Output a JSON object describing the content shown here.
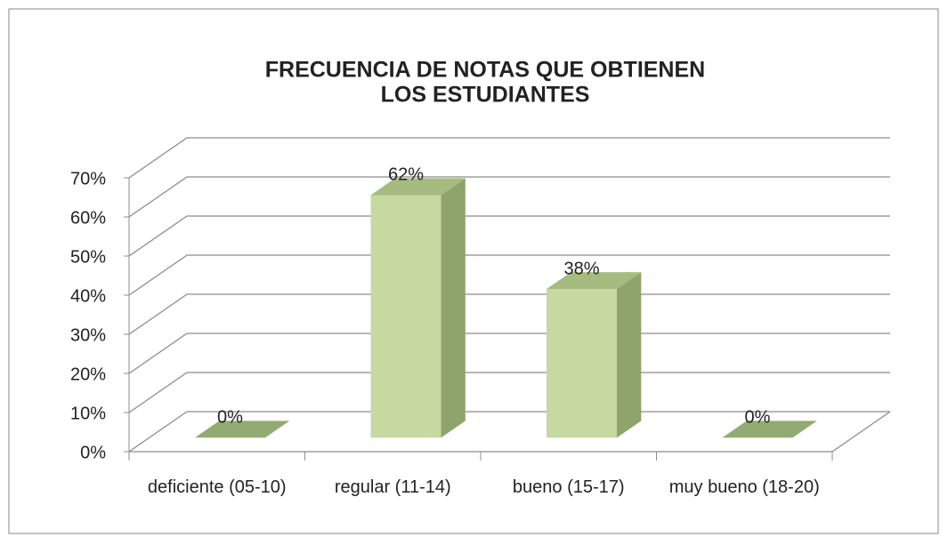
{
  "chart_data": {
    "type": "bar3d",
    "title": [
      "FRECUENCIA DE NOTAS QUE OBTIENEN",
      "LOS ESTUDIANTES"
    ],
    "categories": [
      "deficiente (05-10)",
      "regular (11-14)",
      "bueno (15-17)",
      "muy bueno (18-20)"
    ],
    "values": [
      0,
      62,
      38,
      0
    ],
    "value_labels": [
      "0%",
      "62%",
      "38%",
      "0%"
    ],
    "color": "#c5d9a0",
    "ylim": [
      0,
      70
    ],
    "yticks": [
      {
        "value": 0,
        "label": "0%"
      },
      {
        "value": 10,
        "label": "10%"
      },
      {
        "value": 20,
        "label": "20%"
      },
      {
        "value": 30,
        "label": "30%"
      },
      {
        "value": 40,
        "label": "40%"
      },
      {
        "value": 50,
        "label": "50%"
      },
      {
        "value": 60,
        "label": "60%"
      },
      {
        "value": 70,
        "label": "70%"
      }
    ],
    "grid": true
  }
}
